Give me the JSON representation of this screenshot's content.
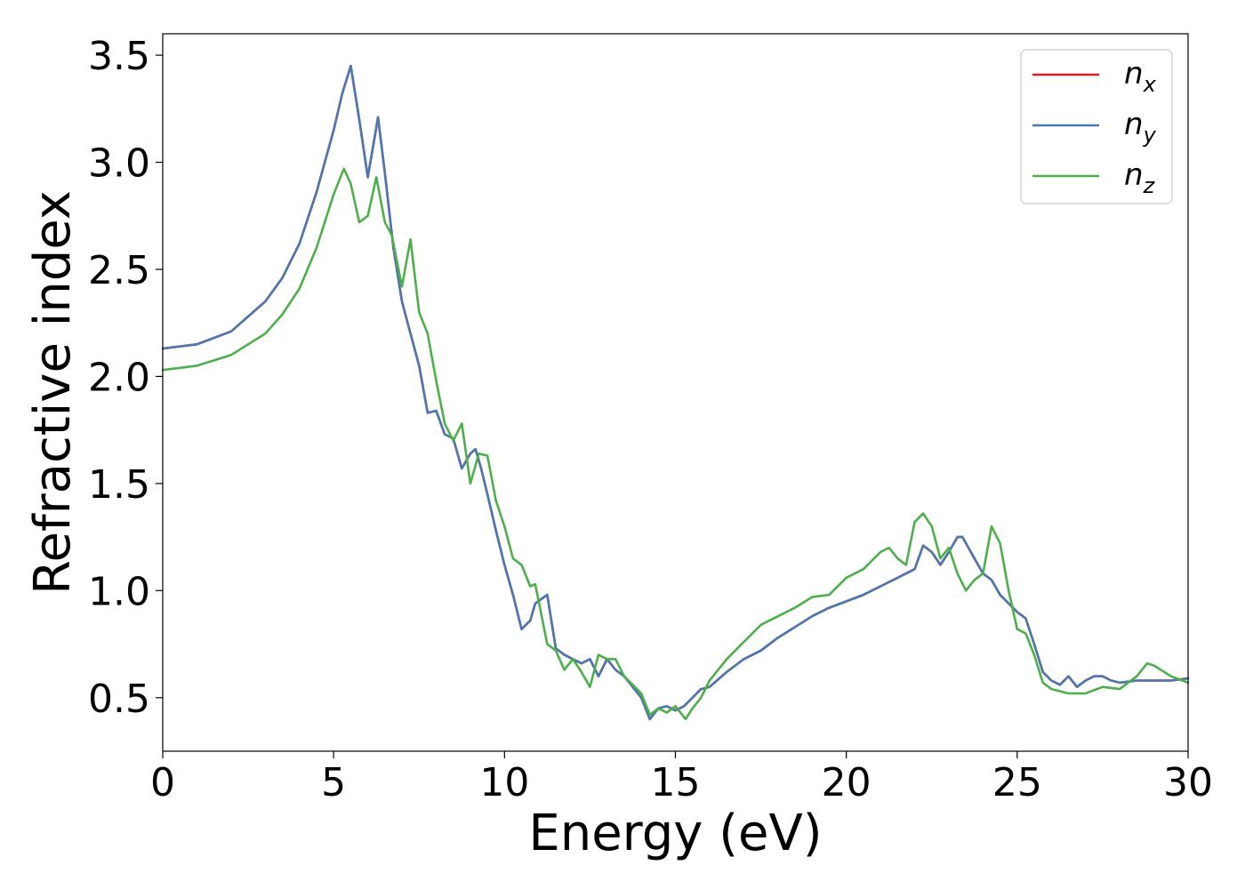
{
  "chart_data": {
    "type": "line",
    "title": "",
    "xlabel": "Energy (eV)",
    "ylabel": "Refractive index",
    "xlim": [
      0,
      30
    ],
    "ylim": [
      0.25,
      3.6
    ],
    "x_ticks": [
      "0",
      "5",
      "10",
      "15",
      "20",
      "25",
      "30"
    ],
    "y_ticks": [
      "0.5",
      "1.0",
      "1.5",
      "2.0",
      "2.5",
      "3.0",
      "3.5"
    ],
    "grid": false,
    "legend_position": "top-right",
    "series": [
      {
        "name": "n_x",
        "legend_main": "n",
        "legend_sub": "x",
        "color": "#e41a1c",
        "x": [
          0,
          1,
          2,
          3,
          3.5,
          4,
          4.5,
          5,
          5.25,
          5.5,
          5.75,
          6,
          6.3,
          6.5,
          6.75,
          7,
          7.25,
          7.5,
          7.75,
          8,
          8.25,
          8.5,
          8.75,
          9,
          9.15,
          9.3,
          9.5,
          9.75,
          10,
          10.25,
          10.5,
          10.75,
          10.9,
          11.25,
          11.5,
          11.75,
          12,
          12.25,
          12.5,
          12.75,
          13,
          13.25,
          13.5,
          13.75,
          14,
          14.25,
          14.5,
          14.75,
          15,
          15.25,
          15.5,
          15.75,
          16,
          16.5,
          17,
          17.5,
          18,
          18.5,
          19,
          19.5,
          20,
          20.5,
          21,
          21.5,
          22,
          22.25,
          22.5,
          22.75,
          23,
          23.25,
          23.4,
          23.75,
          24,
          24.25,
          24.5,
          24.75,
          25,
          25.25,
          25.5,
          25.75,
          26,
          26.25,
          26.5,
          26.75,
          27,
          27.25,
          27.5,
          27.75,
          28,
          28.5,
          29,
          29.5,
          30
        ],
        "y": [
          2.13,
          2.15,
          2.21,
          2.35,
          2.46,
          2.62,
          2.86,
          3.15,
          3.32,
          3.45,
          3.2,
          2.93,
          3.21,
          2.95,
          2.6,
          2.35,
          2.2,
          2.05,
          1.83,
          1.84,
          1.73,
          1.71,
          1.57,
          1.64,
          1.66,
          1.58,
          1.45,
          1.28,
          1.12,
          0.98,
          0.82,
          0.86,
          0.94,
          0.98,
          0.73,
          0.7,
          0.68,
          0.66,
          0.68,
          0.6,
          0.68,
          0.63,
          0.6,
          0.55,
          0.5,
          0.4,
          0.45,
          0.46,
          0.44,
          0.46,
          0.5,
          0.54,
          0.55,
          0.62,
          0.68,
          0.72,
          0.78,
          0.83,
          0.88,
          0.92,
          0.95,
          0.98,
          1.02,
          1.06,
          1.1,
          1.21,
          1.18,
          1.12,
          1.18,
          1.25,
          1.25,
          1.15,
          1.08,
          1.05,
          0.98,
          0.94,
          0.9,
          0.87,
          0.75,
          0.62,
          0.58,
          0.56,
          0.6,
          0.55,
          0.58,
          0.6,
          0.6,
          0.58,
          0.57,
          0.58,
          0.58,
          0.58,
          0.59
        ]
      },
      {
        "name": "n_y",
        "legend_main": "n",
        "legend_sub": "y",
        "color": "#4a78b0",
        "x": [
          0,
          1,
          2,
          3,
          3.5,
          4,
          4.5,
          5,
          5.25,
          5.5,
          5.75,
          6,
          6.3,
          6.5,
          6.75,
          7,
          7.25,
          7.5,
          7.75,
          8,
          8.25,
          8.5,
          8.75,
          9,
          9.15,
          9.3,
          9.5,
          9.75,
          10,
          10.25,
          10.5,
          10.75,
          10.9,
          11.25,
          11.5,
          11.75,
          12,
          12.25,
          12.5,
          12.75,
          13,
          13.25,
          13.5,
          13.75,
          14,
          14.25,
          14.5,
          14.75,
          15,
          15.25,
          15.5,
          15.75,
          16,
          16.5,
          17,
          17.5,
          18,
          18.5,
          19,
          19.5,
          20,
          20.5,
          21,
          21.5,
          22,
          22.25,
          22.5,
          22.75,
          23,
          23.25,
          23.4,
          23.75,
          24,
          24.25,
          24.5,
          24.75,
          25,
          25.25,
          25.5,
          25.75,
          26,
          26.25,
          26.5,
          26.75,
          27,
          27.25,
          27.5,
          27.75,
          28,
          28.5,
          29,
          29.5,
          30
        ],
        "y": [
          2.13,
          2.15,
          2.21,
          2.35,
          2.46,
          2.62,
          2.86,
          3.15,
          3.32,
          3.45,
          3.2,
          2.93,
          3.21,
          2.95,
          2.6,
          2.35,
          2.2,
          2.05,
          1.83,
          1.84,
          1.73,
          1.71,
          1.57,
          1.64,
          1.66,
          1.58,
          1.45,
          1.28,
          1.12,
          0.98,
          0.82,
          0.86,
          0.94,
          0.98,
          0.73,
          0.7,
          0.68,
          0.66,
          0.68,
          0.6,
          0.68,
          0.63,
          0.6,
          0.55,
          0.5,
          0.4,
          0.45,
          0.46,
          0.44,
          0.46,
          0.5,
          0.54,
          0.55,
          0.62,
          0.68,
          0.72,
          0.78,
          0.83,
          0.88,
          0.92,
          0.95,
          0.98,
          1.02,
          1.06,
          1.1,
          1.21,
          1.18,
          1.12,
          1.18,
          1.25,
          1.25,
          1.15,
          1.08,
          1.05,
          0.98,
          0.94,
          0.9,
          0.87,
          0.75,
          0.62,
          0.58,
          0.56,
          0.6,
          0.55,
          0.58,
          0.6,
          0.6,
          0.58,
          0.57,
          0.58,
          0.58,
          0.58,
          0.59
        ]
      },
      {
        "name": "n_z",
        "legend_main": "n",
        "legend_sub": "z",
        "color": "#4daf4a",
        "x": [
          0,
          1,
          2,
          3,
          3.5,
          4,
          4.5,
          5,
          5.3,
          5.5,
          5.75,
          6,
          6.25,
          6.5,
          6.7,
          7,
          7.25,
          7.5,
          7.75,
          8,
          8.25,
          8.5,
          8.75,
          9,
          9.25,
          9.5,
          9.75,
          10,
          10.25,
          10.5,
          10.75,
          10.9,
          11.25,
          11.5,
          11.75,
          12,
          12.25,
          12.5,
          12.75,
          13,
          13.25,
          13.5,
          13.75,
          14,
          14.25,
          14.5,
          14.75,
          15,
          15.3,
          15.5,
          15.75,
          16,
          16.5,
          17,
          17.5,
          18,
          18.5,
          19,
          19.5,
          20,
          20.5,
          21,
          21.25,
          21.5,
          21.75,
          22,
          22.25,
          22.5,
          22.75,
          23,
          23.25,
          23.5,
          23.75,
          24,
          24.25,
          24.5,
          24.75,
          25,
          25.25,
          25.5,
          25.75,
          26,
          26.5,
          27,
          27.5,
          28,
          28.5,
          28.8,
          29,
          29.5,
          30
        ],
        "y": [
          2.03,
          2.05,
          2.1,
          2.2,
          2.29,
          2.41,
          2.6,
          2.85,
          2.97,
          2.9,
          2.72,
          2.75,
          2.93,
          2.72,
          2.66,
          2.42,
          2.64,
          2.3,
          2.2,
          1.98,
          1.78,
          1.7,
          1.78,
          1.5,
          1.64,
          1.63,
          1.42,
          1.3,
          1.15,
          1.12,
          1.02,
          1.03,
          0.75,
          0.72,
          0.63,
          0.68,
          0.62,
          0.55,
          0.7,
          0.68,
          0.68,
          0.6,
          0.56,
          0.52,
          0.42,
          0.45,
          0.43,
          0.46,
          0.4,
          0.45,
          0.5,
          0.58,
          0.68,
          0.76,
          0.84,
          0.88,
          0.92,
          0.97,
          0.98,
          1.06,
          1.1,
          1.18,
          1.2,
          1.15,
          1.12,
          1.32,
          1.36,
          1.3,
          1.15,
          1.2,
          1.08,
          1.0,
          1.05,
          1.08,
          1.3,
          1.22,
          1.0,
          0.82,
          0.8,
          0.7,
          0.57,
          0.54,
          0.52,
          0.52,
          0.55,
          0.54,
          0.6,
          0.66,
          0.65,
          0.6,
          0.57
        ]
      }
    ]
  }
}
